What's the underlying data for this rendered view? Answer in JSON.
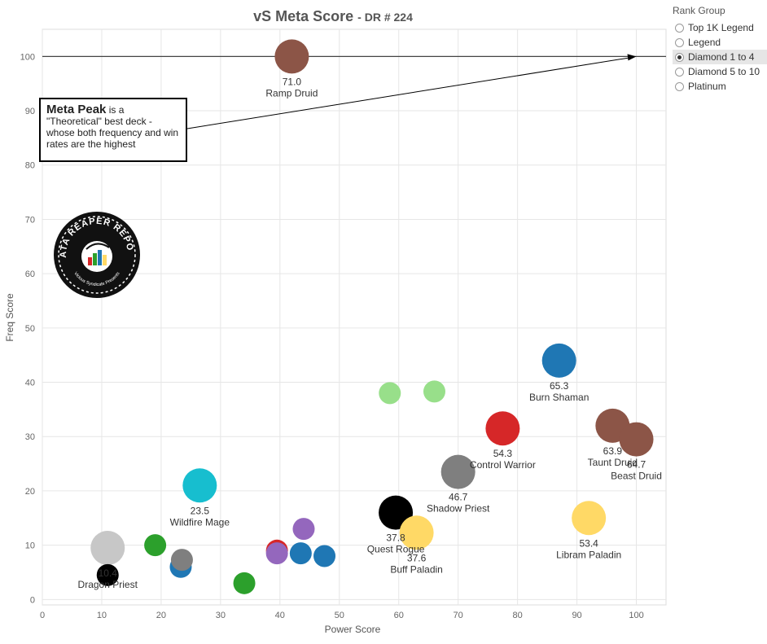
{
  "title": {
    "main": "vS Meta Score",
    "sub": "DR # 224"
  },
  "legend": {
    "title": "Rank Group",
    "items": [
      {
        "label": "Top 1K Legend",
        "selected": false
      },
      {
        "label": "Legend",
        "selected": false
      },
      {
        "label": "Diamond 1 to 4",
        "selected": true
      },
      {
        "label": "Diamond 5 to 10",
        "selected": false
      },
      {
        "label": "Platinum",
        "selected": false
      }
    ]
  },
  "callout": {
    "highlight": "Meta Peak",
    "text": " is a \"Theoretical\" best deck - whose both frequency and win rates are the highest"
  },
  "logo": {
    "text_top": "DATA REAPER REPORT",
    "text_bottom": "Vicious Syndicate Presents"
  },
  "chart_data": {
    "type": "scatter",
    "xlabel": "Power Score",
    "ylabel": "Freq Score",
    "xlim": [
      0,
      105
    ],
    "ylim": [
      -1,
      105
    ],
    "xticks": [
      0,
      10,
      20,
      30,
      40,
      50,
      60,
      70,
      80,
      90,
      100
    ],
    "yticks": [
      0,
      10,
      20,
      30,
      40,
      50,
      60,
      70,
      80,
      90,
      100
    ],
    "grid": true,
    "reference_line": {
      "y": 100
    },
    "points": [
      {
        "x": 42,
        "y": 100,
        "color": "#8c5547",
        "score": "71.0",
        "name": "Ramp Druid"
      },
      {
        "x": 87,
        "y": 44,
        "color": "#1f77b4",
        "score": "65.3",
        "name": "Burn Shaman"
      },
      {
        "x": 96,
        "y": 32,
        "color": "#8c5547",
        "score": "63.9",
        "name": "Taunt Druid"
      },
      {
        "x": 100,
        "y": 29.5,
        "color": "#8c5547",
        "score": "64.7",
        "name": "Beast Druid"
      },
      {
        "x": 77.5,
        "y": 31.5,
        "color": "#d62728",
        "score": "54.3",
        "name": "Control Warrior"
      },
      {
        "x": 70,
        "y": 23.5,
        "color": "#7f7f7f",
        "score": "46.7",
        "name": "Shadow Priest"
      },
      {
        "x": 92,
        "y": 15,
        "color": "#ffd966",
        "score": "53.4",
        "name": "Libram Paladin"
      },
      {
        "x": 59.5,
        "y": 16,
        "color": "#000000",
        "score": "37.8",
        "name": "Quest Rogue"
      },
      {
        "x": 63,
        "y": 12.3,
        "color": "#ffd966",
        "score": "37.6",
        "name": "Buff Paladin"
      },
      {
        "x": 26.5,
        "y": 21,
        "color": "#17becf",
        "score": "23.5",
        "name": "Wildfire Mage"
      },
      {
        "x": 11,
        "y": 9.5,
        "color": "#c7c7c7",
        "score": "10.4",
        "name": "Dragon Priest"
      },
      {
        "x": 58.5,
        "y": 38,
        "color": "#98df8a",
        "score": "",
        "name": ""
      },
      {
        "x": 66,
        "y": 38.3,
        "color": "#98df8a",
        "score": "",
        "name": ""
      },
      {
        "x": 11,
        "y": 4.5,
        "color": "#000000",
        "score": "",
        "name": ""
      },
      {
        "x": 19,
        "y": 10,
        "color": "#2ca02c",
        "score": "",
        "name": ""
      },
      {
        "x": 23.3,
        "y": 6,
        "color": "#1f77b4",
        "score": "",
        "name": ""
      },
      {
        "x": 23.5,
        "y": 7.3,
        "color": "#7f7f7f",
        "score": "",
        "name": ""
      },
      {
        "x": 34,
        "y": 3,
        "color": "#2ca02c",
        "score": "",
        "name": ""
      },
      {
        "x": 39.5,
        "y": 9,
        "color": "#d62728",
        "score": "",
        "name": ""
      },
      {
        "x": 39.5,
        "y": 8.5,
        "color": "#9467bd",
        "score": "",
        "name": ""
      },
      {
        "x": 44,
        "y": 13,
        "color": "#9467bd",
        "score": "",
        "name": ""
      },
      {
        "x": 43.5,
        "y": 8.5,
        "color": "#1f77b4",
        "score": "",
        "name": ""
      },
      {
        "x": 47.5,
        "y": 8,
        "color": "#1f77b4",
        "score": "",
        "name": ""
      }
    ]
  }
}
